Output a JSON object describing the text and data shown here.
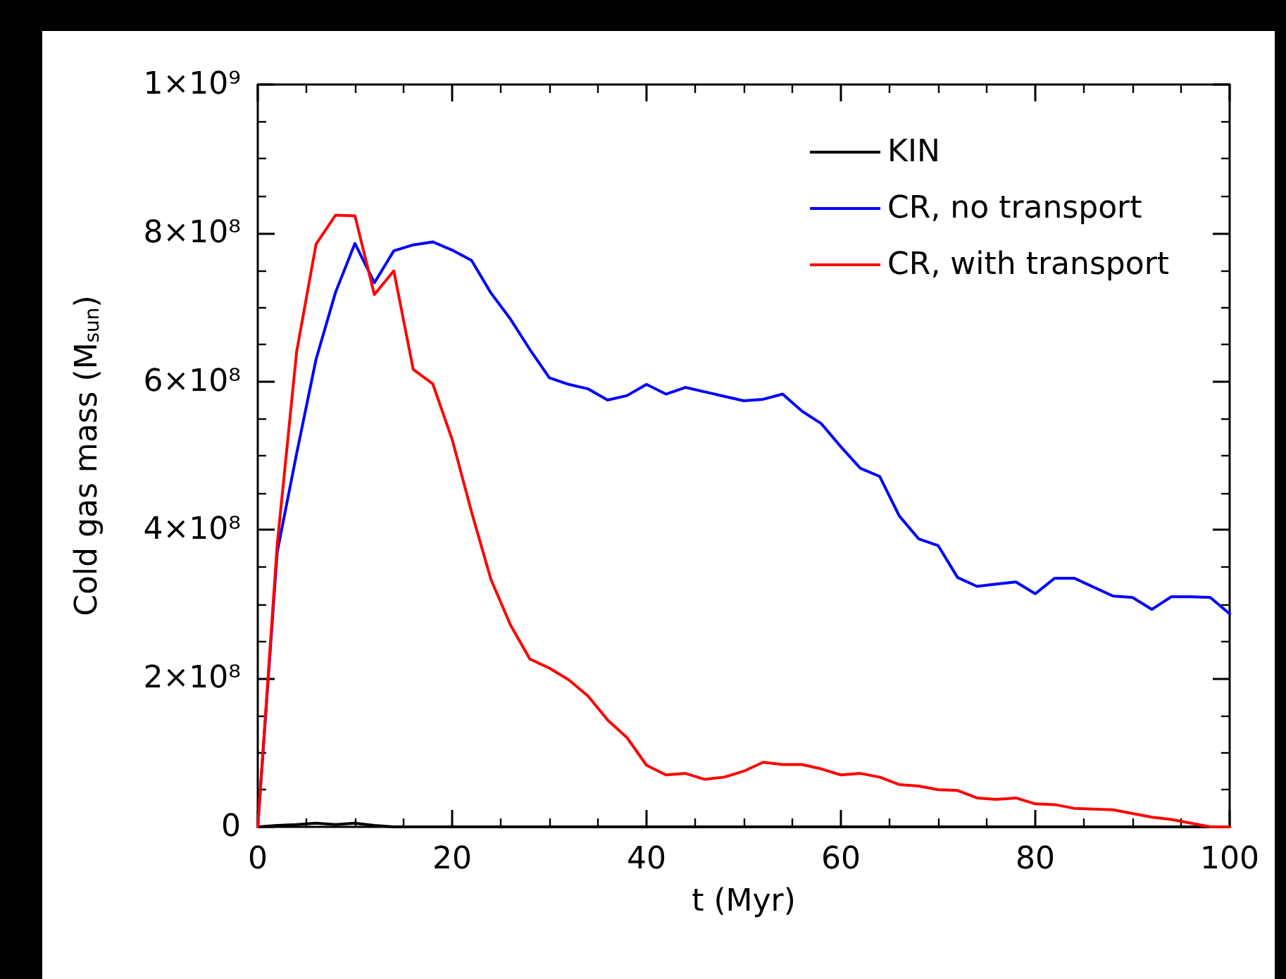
{
  "chart_data": {
    "type": "line",
    "xlabel": "t (Myr)",
    "ylabel": "Cold gas mass (M$_{sun}$)",
    "x": [
      0,
      2,
      4,
      6,
      8,
      10,
      12,
      14,
      16,
      18,
      20,
      22,
      24,
      26,
      28,
      30,
      32,
      34,
      36,
      38,
      40,
      42,
      44,
      46,
      48,
      50,
      52,
      54,
      56,
      58,
      60,
      62,
      64,
      66,
      68,
      70,
      72,
      74,
      76,
      78,
      80,
      82,
      84,
      86,
      88,
      90,
      92,
      94,
      96,
      98,
      100
    ],
    "series": [
      {
        "name": "KIN",
        "color": "#000000",
        "values": [
          0,
          2000000,
          3000000,
          5000000,
          3000000,
          5000000,
          2000000,
          0,
          0,
          0,
          0,
          0,
          0,
          0,
          0,
          0,
          0,
          0,
          0,
          0,
          0,
          0,
          0,
          0,
          0,
          0,
          0,
          0,
          0,
          0,
          0,
          0,
          0,
          0,
          0,
          0,
          0,
          0,
          0,
          0,
          0,
          0,
          0,
          0,
          0,
          0,
          0,
          0,
          0,
          0,
          0
        ]
      },
      {
        "name": "CR, no transport",
        "color": "#0000ff",
        "values": [
          0,
          370000000,
          503000000,
          630000000,
          720000000,
          786000000,
          733000000,
          776000000,
          784000000,
          788000000,
          777000000,
          763000000,
          719000000,
          684000000,
          643000000,
          605000000,
          596000000,
          590000000,
          575000000,
          581000000,
          596000000,
          583000000,
          592000000,
          586000000,
          580000000,
          574000000,
          576000000,
          583000000,
          560000000,
          543000000,
          512000000,
          483000000,
          472000000,
          419000000,
          388000000,
          379000000,
          336000000,
          324000000,
          327000000,
          330000000,
          314000000,
          335000000,
          335000000,
          323000000,
          311000000,
          309000000,
          293000000,
          310000000,
          310000000,
          309000000,
          287000000
        ]
      },
      {
        "name": "CR, with transport",
        "color": "#ff0000",
        "values": [
          0,
          380000000,
          640000000,
          785000000,
          824000000,
          823000000,
          717000000,
          749000000,
          616000000,
          597000000,
          522000000,
          424000000,
          333000000,
          272000000,
          226000000,
          214000000,
          198000000,
          176000000,
          144000000,
          120000000,
          83000000,
          70000000,
          72000000,
          64000000,
          67000000,
          75000000,
          87000000,
          84000000,
          84000000,
          78000000,
          70000000,
          72000000,
          67000000,
          57000000,
          55000000,
          50000000,
          49000000,
          39000000,
          37000000,
          39000000,
          31000000,
          30000000,
          25000000,
          24000000,
          23000000,
          18000000,
          13000000,
          10000000,
          5000000,
          0,
          0
        ]
      }
    ],
    "xlim": [
      0,
      100
    ],
    "xticks": [
      0,
      20,
      40,
      60,
      80,
      100
    ],
    "ylim": [
      0,
      1000000000
    ],
    "yticks": [
      {
        "value": 0,
        "label": "0"
      },
      {
        "value": 200000000,
        "label": "2×10⁸"
      },
      {
        "value": 400000000,
        "label": "4×10⁸"
      },
      {
        "value": 600000000,
        "label": "6×10⁸"
      },
      {
        "value": 800000000,
        "label": "8×10⁸"
      },
      {
        "value": 1000000000,
        "label": "1×10⁹"
      }
    ],
    "legend": "top right",
    "grid": false,
    "marker": "none",
    "line_style": "solid"
  }
}
